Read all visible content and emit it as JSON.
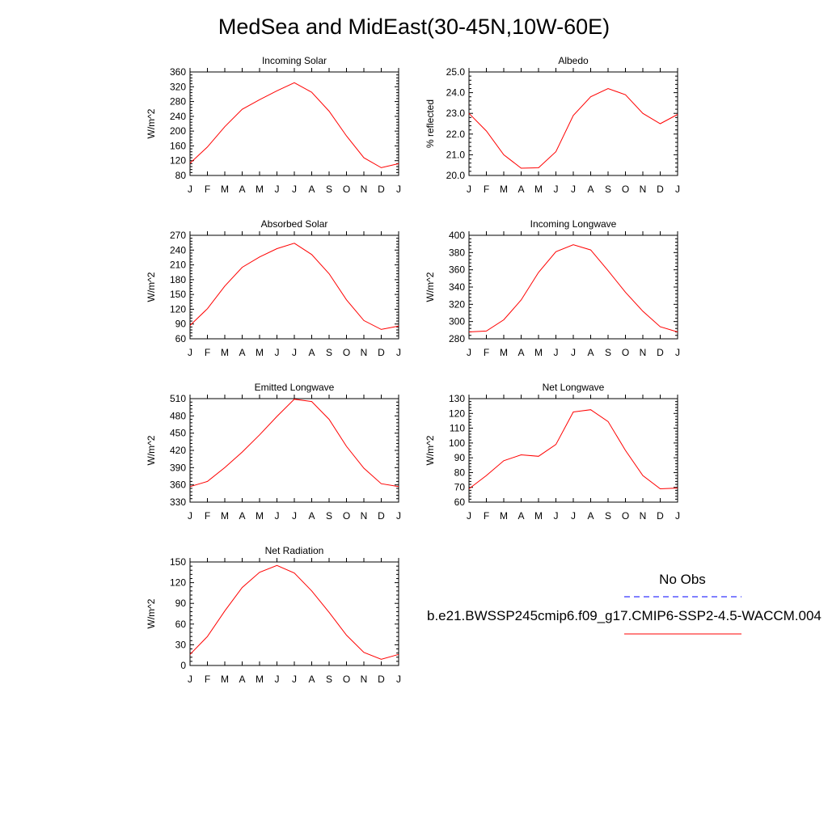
{
  "page": {
    "title": "MedSea and MidEast(30-45N,10W-60E)"
  },
  "colors": {
    "model_line": "#ff0000",
    "obs_line": "#0000ff",
    "axis": "#000000"
  },
  "legend": {
    "obs_label": "No Obs",
    "model_label": "b.e21.BWSSP245cmip6.f09_g17.CMIP6-SSP2-4.5-WACCM.004"
  },
  "chart_data": [
    {
      "type": "line",
      "title": "Incoming Solar",
      "ylabel": "W/m^2",
      "xlabel": "",
      "categories": [
        "J",
        "F",
        "M",
        "A",
        "M",
        "J",
        "J",
        "A",
        "S",
        "O",
        "N",
        "D",
        "J"
      ],
      "ylim": [
        80,
        360
      ],
      "yticks": [
        "80",
        "120",
        "160",
        "200",
        "240",
        "280",
        "320",
        "360"
      ],
      "series": [
        {
          "values": [
            113,
            157,
            212,
            259,
            285,
            309,
            331,
            305,
            254,
            187,
            128,
            101,
            112
          ]
        }
      ]
    },
    {
      "type": "line",
      "title": "Albedo",
      "ylabel": "% reflected",
      "xlabel": "",
      "categories": [
        "J",
        "F",
        "M",
        "A",
        "M",
        "J",
        "J",
        "A",
        "S",
        "O",
        "N",
        "D",
        "J"
      ],
      "ylim": [
        20.0,
        25.0
      ],
      "yticks": [
        "20.0",
        "21.0",
        "22.0",
        "23.0",
        "24.0",
        "25.0"
      ],
      "series": [
        {
          "values": [
            23.0,
            22.15,
            21.0,
            20.35,
            20.37,
            21.15,
            22.9,
            23.8,
            24.2,
            23.9,
            23.0,
            22.5,
            22.95
          ]
        }
      ]
    },
    {
      "type": "line",
      "title": "Absorbed Solar",
      "ylabel": "W/m^2",
      "xlabel": "",
      "categories": [
        "J",
        "F",
        "M",
        "A",
        "M",
        "J",
        "J",
        "A",
        "S",
        "O",
        "N",
        "D",
        "J"
      ],
      "ylim": [
        60,
        270
      ],
      "yticks": [
        "60",
        "90",
        "120",
        "150",
        "180",
        "210",
        "240",
        "270"
      ],
      "series": [
        {
          "values": [
            87,
            121,
            167,
            205,
            226,
            243,
            254,
            231,
            192,
            139,
            97,
            79,
            86
          ]
        }
      ]
    },
    {
      "type": "line",
      "title": "Incoming Longwave",
      "ylabel": "W/m^2",
      "xlabel": "",
      "categories": [
        "J",
        "F",
        "M",
        "A",
        "M",
        "J",
        "J",
        "A",
        "S",
        "O",
        "N",
        "D",
        "J"
      ],
      "ylim": [
        280,
        400
      ],
      "yticks": [
        "280",
        "300",
        "320",
        "340",
        "360",
        "380",
        "400"
      ],
      "series": [
        {
          "values": [
            288,
            289,
            302,
            325,
            357,
            381,
            389,
            383,
            359,
            334,
            312,
            294,
            288
          ]
        }
      ]
    },
    {
      "type": "line",
      "title": "Emitted Longwave",
      "ylabel": "W/m^2",
      "xlabel": "",
      "categories": [
        "J",
        "F",
        "M",
        "A",
        "M",
        "J",
        "J",
        "A",
        "S",
        "O",
        "N",
        "D",
        "J"
      ],
      "ylim": [
        330,
        510
      ],
      "yticks": [
        "330",
        "360",
        "390",
        "420",
        "450",
        "480",
        "510"
      ],
      "series": [
        {
          "values": [
            357,
            366,
            390,
            417,
            447,
            479,
            509,
            505,
            474,
            427,
            389,
            362,
            357
          ]
        }
      ]
    },
    {
      "type": "line",
      "title": "Net Longwave",
      "ylabel": "W/m^2",
      "xlabel": "",
      "categories": [
        "J",
        "F",
        "M",
        "A",
        "M",
        "J",
        "J",
        "A",
        "S",
        "O",
        "N",
        "D",
        "J"
      ],
      "ylim": [
        60,
        130
      ],
      "yticks": [
        "60",
        "70",
        "80",
        "90",
        "100",
        "110",
        "120",
        "130"
      ],
      "series": [
        {
          "values": [
            69,
            78,
            88,
            92,
            91,
            99,
            121,
            122.5,
            114.5,
            95,
            78,
            69,
            69.5
          ]
        }
      ]
    },
    {
      "type": "line",
      "title": "Net Radiation",
      "ylabel": "W/m^2",
      "xlabel": "",
      "categories": [
        "J",
        "F",
        "M",
        "A",
        "M",
        "J",
        "J",
        "A",
        "S",
        "O",
        "N",
        "D",
        "J"
      ],
      "ylim": [
        0,
        150
      ],
      "yticks": [
        "0",
        "30",
        "60",
        "90",
        "120",
        "150"
      ],
      "series": [
        {
          "values": [
            16,
            42,
            79,
            113,
            135,
            145,
            134,
            108,
            77,
            44,
            19,
            9,
            16
          ]
        }
      ]
    }
  ]
}
